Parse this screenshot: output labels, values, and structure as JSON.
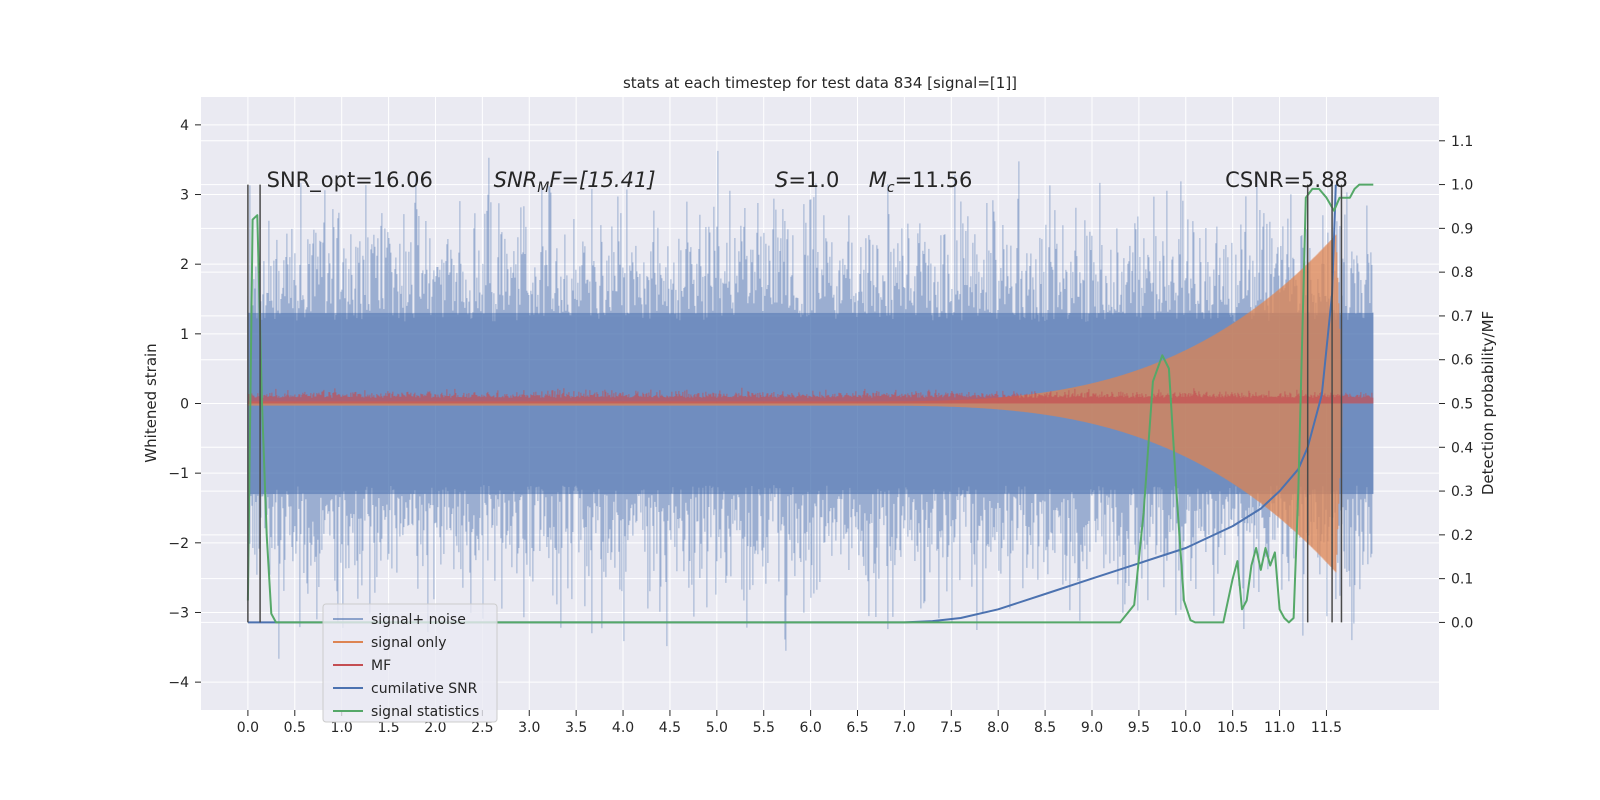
{
  "chart_data": {
    "type": "line",
    "title": "stats at each timestep for test data 834 [signal=[1]]",
    "ylabel": "Whitened strain",
    "ylabel_right": "Detection probability/MF",
    "xlim": [
      -0.5,
      12.7
    ],
    "ylim": [
      -4.4,
      4.4
    ],
    "ylim_right": [
      -0.2,
      1.2
    ],
    "x_ticks": [
      "0.0",
      "0.5",
      "1.0",
      "1.5",
      "2.0",
      "2.5",
      "3.0",
      "3.5",
      "4.0",
      "4.5",
      "5.0",
      "5.5",
      "6.0",
      "6.5",
      "7.0",
      "7.5",
      "8.0",
      "8.5",
      "9.0",
      "9.5",
      "10.0",
      "10.5",
      "11.0",
      "11.5"
    ],
    "y_ticks": [
      "4",
      "3",
      "2",
      "1",
      "0",
      "−1",
      "−2",
      "−3",
      "−4"
    ],
    "y_right_ticks": [
      "1.1",
      "1.0",
      "0.9",
      "0.8",
      "0.7",
      "0.6",
      "0.5",
      "0.4",
      "0.3",
      "0.2",
      "0.1",
      "0.0"
    ],
    "grid": true,
    "legend_position": "lower-left",
    "annotations": [
      {
        "text": "SNR_opt=16.06",
        "x": 0.2
      },
      {
        "text": "SNR",
        "sub": "M",
        "tail": "F=[15.41]",
        "italic": true,
        "x": 2.62
      },
      {
        "text": "S",
        "tail": "=1.0",
        "italic": true,
        "x": 5.62
      },
      {
        "text": "M",
        "sub": "c",
        "tail": "=11.56",
        "italic": true,
        "x": 6.62
      },
      {
        "text": "CSNR=5.88",
        "x": 10.42
      }
    ],
    "vertical_lines": [
      0.0,
      0.13,
      11.3,
      11.56,
      11.66
    ],
    "series": [
      {
        "name": "signal+ noise",
        "color": "#4c72b0",
        "axis": "left",
        "kind": "noise",
        "x_range": [
          0.0,
          12.0
        ],
        "typical_amplitude": 1.3,
        "peak_amplitude": 4.1
      },
      {
        "name": "signal only",
        "color": "#dd8452",
        "axis": "left",
        "kind": "chirp",
        "x_range": [
          0.0,
          11.66
        ],
        "merger_x": 11.6,
        "peak_amplitude": 2.4
      },
      {
        "name": "MF",
        "color": "#c44e52",
        "axis": "left",
        "kind": "band",
        "x_range": [
          0.0,
          12.0
        ],
        "typical_amplitude": 0.15
      },
      {
        "name": "cumilative SNR",
        "color": "#4c72b0",
        "axis": "right",
        "x": [
          0.0,
          7.0,
          7.3,
          7.6,
          8.0,
          8.5,
          9.0,
          9.5,
          10.0,
          10.5,
          10.8,
          11.0,
          11.2,
          11.3,
          11.45,
          11.56,
          11.6
        ],
        "y": [
          0.0,
          0.0,
          0.003,
          0.01,
          0.03,
          0.065,
          0.1,
          0.135,
          0.17,
          0.22,
          0.26,
          0.3,
          0.35,
          0.4,
          0.52,
          0.75,
          1.0
        ]
      },
      {
        "name": "signal statistics",
        "color": "#55a868",
        "axis": "right",
        "x": [
          0.0,
          0.05,
          0.1,
          0.15,
          0.2,
          0.25,
          0.3,
          0.4,
          4.4,
          4.5,
          5.1,
          5.2,
          6.3,
          6.5,
          6.6,
          8.9,
          9.0,
          9.3,
          9.45,
          9.55,
          9.65,
          9.75,
          9.82,
          9.9,
          9.98,
          10.05,
          10.1,
          10.4,
          10.5,
          10.55,
          10.6,
          10.65,
          10.7,
          10.75,
          10.8,
          10.85,
          10.9,
          10.95,
          11.0,
          11.05,
          11.1,
          11.15,
          11.2,
          11.28,
          11.35,
          11.42,
          11.5,
          11.58,
          11.64,
          11.68,
          11.75,
          11.8,
          11.85,
          12.0
        ],
        "y": [
          0.05,
          0.92,
          0.93,
          0.5,
          0.2,
          0.02,
          0.0,
          0.0,
          0.0,
          0.0,
          0.0,
          0.0,
          0.0,
          0.0,
          0.0,
          0.0,
          0.0,
          0.0,
          0.04,
          0.25,
          0.55,
          0.61,
          0.58,
          0.3,
          0.05,
          0.005,
          0.0,
          0.0,
          0.1,
          0.14,
          0.03,
          0.05,
          0.13,
          0.17,
          0.12,
          0.17,
          0.13,
          0.16,
          0.03,
          0.01,
          0.0,
          0.01,
          0.3,
          0.97,
          0.99,
          0.99,
          0.97,
          0.94,
          0.97,
          0.97,
          0.97,
          0.99,
          1.0,
          1.0
        ]
      }
    ]
  }
}
